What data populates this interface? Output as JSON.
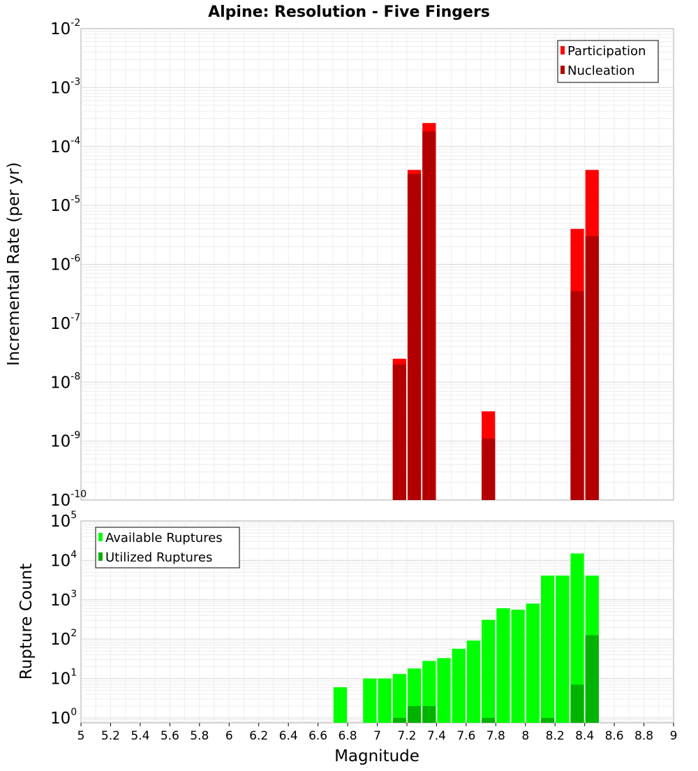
{
  "chart_data": [
    {
      "type": "bar",
      "stacked_overlay": true,
      "title": "Alpine: Resolution - Five Fingers",
      "xlabel": "Magnitude",
      "ylabel": "Incremental Rate (per yr)",
      "yscale": "log",
      "ylim": [
        1e-10,
        0.01
      ],
      "xlim": [
        5,
        9
      ],
      "bin_width": 0.1,
      "y_tick_exponents": [
        "-2",
        "-3",
        "-4",
        "-5",
        "-6",
        "-7",
        "-8",
        "-9",
        "-10"
      ],
      "y_tick_values": [
        0.01,
        0.001,
        0.0001,
        1e-05,
        1e-06,
        1e-07,
        1e-08,
        1e-09,
        1e-10
      ],
      "legend_position": "top-right",
      "series": [
        {
          "name": "Participation",
          "color": "#ff0000",
          "points": [
            {
              "x": 7.15,
              "y": 2.5e-08
            },
            {
              "x": 7.25,
              "y": 4e-05
            },
            {
              "x": 7.35,
              "y": 0.00025
            },
            {
              "x": 7.75,
              "y": 3.2e-09
            },
            {
              "x": 8.35,
              "y": 4e-06
            },
            {
              "x": 8.45,
              "y": 4e-05
            }
          ]
        },
        {
          "name": "Nucleation",
          "color": "#b20000",
          "points": [
            {
              "x": 7.15,
              "y": 2e-08
            },
            {
              "x": 7.25,
              "y": 3.4e-05
            },
            {
              "x": 7.35,
              "y": 0.00018
            },
            {
              "x": 7.75,
              "y": 1.1e-09
            },
            {
              "x": 8.35,
              "y": 3.5e-07
            },
            {
              "x": 8.45,
              "y": 3e-06
            }
          ]
        }
      ]
    },
    {
      "type": "bar",
      "stacked_overlay": true,
      "title": "",
      "xlabel": "Magnitude",
      "ylabel": "Rupture Count",
      "yscale": "log",
      "ylim": [
        0.75,
        100000
      ],
      "xlim": [
        5,
        9
      ],
      "bin_width": 0.1,
      "y_tick_exponents": [
        "5",
        "4",
        "3",
        "2",
        "1",
        "0"
      ],
      "y_tick_values": [
        100000,
        10000,
        1000,
        100,
        10,
        1
      ],
      "x_tick_labels": [
        "5",
        "5.2",
        "5.4",
        "5.6",
        "5.8",
        "6",
        "6.2",
        "6.4",
        "6.6",
        "6.8",
        "7",
        "7.2",
        "7.4",
        "7.6",
        "7.8",
        "8",
        "8.2",
        "8.4",
        "8.6",
        "8.8",
        "9"
      ],
      "x_tick_values": [
        5,
        5.2,
        5.4,
        5.6,
        5.8,
        6,
        6.2,
        6.4,
        6.6,
        6.8,
        7,
        7.2,
        7.4,
        7.6,
        7.8,
        8,
        8.2,
        8.4,
        8.6,
        8.8,
        9
      ],
      "legend_position": "top-left",
      "series": [
        {
          "name": "Available Ruptures",
          "color": "#00ff00",
          "points": [
            {
              "x": 6.75,
              "y": 6
            },
            {
              "x": 6.95,
              "y": 10
            },
            {
              "x": 7.05,
              "y": 10
            },
            {
              "x": 7.15,
              "y": 13
            },
            {
              "x": 7.25,
              "y": 18
            },
            {
              "x": 7.35,
              "y": 28
            },
            {
              "x": 7.45,
              "y": 33
            },
            {
              "x": 7.55,
              "y": 57
            },
            {
              "x": 7.65,
              "y": 92
            },
            {
              "x": 7.75,
              "y": 310
            },
            {
              "x": 7.85,
              "y": 610
            },
            {
              "x": 7.95,
              "y": 560
            },
            {
              "x": 8.05,
              "y": 800
            },
            {
              "x": 8.15,
              "y": 4100
            },
            {
              "x": 8.25,
              "y": 4100
            },
            {
              "x": 8.35,
              "y": 15000
            },
            {
              "x": 8.45,
              "y": 4100
            }
          ]
        },
        {
          "name": "Utilized Ruptures",
          "color": "#00b300",
          "points": [
            {
              "x": 7.15,
              "y": 1
            },
            {
              "x": 7.25,
              "y": 2
            },
            {
              "x": 7.35,
              "y": 2
            },
            {
              "x": 7.75,
              "y": 1
            },
            {
              "x": 8.15,
              "y": 1
            },
            {
              "x": 8.35,
              "y": 7
            },
            {
              "x": 8.45,
              "y": 125
            }
          ]
        }
      ]
    }
  ]
}
